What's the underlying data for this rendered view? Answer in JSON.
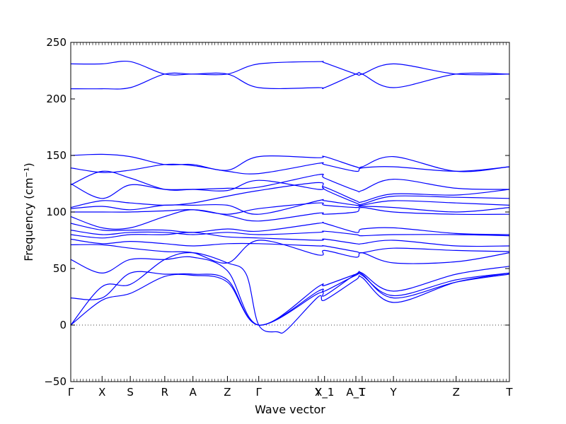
{
  "chart_data": {
    "type": "line",
    "xlabel": "Wave vector",
    "ylabel": "Frequency (cm⁻¹)",
    "ylim": [
      -50,
      250
    ],
    "yticks": [
      -50,
      0,
      50,
      100,
      150,
      200,
      250
    ],
    "xlim": [
      0,
      14
    ],
    "grid": false,
    "high_symmetry_points": [
      {
        "label": "Γ",
        "x": 0.0
      },
      {
        "label": "X",
        "x": 1.0
      },
      {
        "label": "S",
        "x": 1.9
      },
      {
        "label": "R",
        "x": 3.0
      },
      {
        "label": "A",
        "x": 3.9
      },
      {
        "label": "Z",
        "x": 5.0
      },
      {
        "label": "Γ",
        "x": 6.0
      },
      {
        "label": "Y",
        "x": 7.9
      },
      {
        "label": "X_1",
        "x": 8.1
      },
      {
        "label": "A_1",
        "x": 9.1
      },
      {
        "label": "T",
        "x": 9.3
      },
      {
        "label": "Y",
        "x": 10.3
      },
      {
        "label": "Z",
        "x": 12.3
      },
      {
        "label": "T",
        "x": 14.0
      }
    ],
    "zero_line": 0,
    "line_color": "#0000ff",
    "series": [
      {
        "x": [
          0,
          1,
          1.9,
          3,
          3.9,
          5,
          6,
          7.9,
          8.1,
          9.1,
          9.3,
          10.3,
          12.3,
          14
        ],
        "values": [
          209,
          209,
          210,
          222,
          222,
          222,
          210,
          210,
          210,
          222,
          222,
          210,
          222,
          222
        ]
      },
      {
        "x": [
          0,
          1,
          1.9,
          3,
          3.9,
          5,
          6,
          7.9,
          8.1,
          9.1,
          9.3,
          10.3,
          12.3,
          14
        ],
        "values": [
          231,
          231,
          233,
          222,
          222,
          222,
          231,
          233,
          232,
          222,
          222,
          231,
          222,
          222
        ]
      },
      {
        "x": [
          0,
          1,
          1.9,
          3,
          3.9,
          5,
          6,
          7.9,
          8.1,
          9.1,
          9.3,
          10.3,
          12.3,
          14
        ],
        "values": [
          150,
          151,
          149,
          142,
          142,
          137,
          149,
          148,
          149,
          140,
          140,
          149,
          136,
          140
        ]
      },
      {
        "x": [
          0,
          1,
          1.9,
          3,
          3.9,
          5,
          6,
          7.9,
          8.1,
          9.1,
          9.3,
          10.3,
          12.3,
          14
        ],
        "values": [
          139,
          135,
          137,
          142,
          141,
          136,
          134,
          143,
          142,
          136,
          139,
          140,
          136,
          140
        ]
      },
      {
        "x": [
          0,
          1,
          1.9,
          3,
          3.9,
          5,
          6,
          7.9,
          8.1,
          9.1,
          9.3,
          10.3,
          12.3,
          14
        ],
        "values": [
          124,
          136,
          130,
          120,
          120,
          121,
          122,
          133,
          130,
          119,
          119,
          129,
          121,
          120
        ]
      },
      {
        "x": [
          0,
          1,
          1.9,
          3,
          3.9,
          5,
          6,
          7.9,
          8.1,
          9.1,
          9.3,
          10.3,
          12.3,
          14
        ],
        "values": [
          125,
          112,
          124,
          120,
          120,
          119,
          128,
          120,
          122,
          110,
          109,
          116,
          115,
          120
        ]
      },
      {
        "x": [
          0,
          1,
          1.9,
          3,
          3.9,
          5,
          6,
          7.9,
          8.1,
          9.1,
          9.3,
          10.3,
          12.3,
          14
        ],
        "values": [
          104,
          110,
          108,
          106,
          108,
          114,
          119,
          126,
          120,
          108,
          107,
          114,
          113,
          112
        ]
      },
      {
        "x": [
          0,
          1,
          1.9,
          3,
          3.9,
          5,
          6,
          7.9,
          8.1,
          9.1,
          9.3,
          10.3,
          12.3,
          14
        ],
        "values": [
          103,
          105,
          102,
          106,
          106,
          106,
          98,
          110,
          110,
          106,
          106,
          110,
          108,
          106
        ]
      },
      {
        "x": [
          0,
          1,
          1.9,
          3,
          3.9,
          5,
          6,
          7.9,
          8.1,
          9.1,
          9.3,
          10.3,
          12.3,
          14
        ],
        "values": [
          100,
          100,
          100,
          101,
          102,
          98,
          103,
          108,
          106,
          104,
          105,
          104,
          100,
          104
        ]
      },
      {
        "x": [
          0,
          1,
          1.9,
          3,
          3.9,
          5,
          6,
          7.9,
          8.1,
          9.1,
          9.3,
          10.3,
          12.3,
          14
        ],
        "values": [
          96,
          86,
          86,
          96,
          102,
          97,
          92,
          99,
          98,
          100,
          104,
          100,
          98,
          98
        ]
      },
      {
        "x": [
          0,
          1,
          1.9,
          3,
          3.9,
          5,
          6,
          7.9,
          8.1,
          9.1,
          9.3,
          10.3,
          12.3,
          14
        ],
        "values": [
          90,
          84,
          84,
          84,
          82,
          85,
          83,
          90,
          90,
          82,
          85,
          86,
          81,
          80
        ]
      },
      {
        "x": [
          0,
          1,
          1.9,
          3,
          3.9,
          5,
          6,
          7.9,
          8.1,
          9.1,
          9.3,
          10.3,
          12.3,
          14
        ],
        "values": [
          84,
          80,
          82,
          82,
          80,
          82,
          80,
          82,
          83,
          80,
          79,
          80,
          80,
          79
        ]
      },
      {
        "x": [
          0,
          1,
          1.9,
          3,
          3.9,
          5,
          6,
          7.9,
          8.1,
          9.1,
          9.3,
          10.3,
          12.3,
          14
        ],
        "values": [
          80,
          77,
          80,
          80,
          82,
          78,
          77,
          75,
          76,
          72,
          72,
          75,
          70,
          70
        ]
      },
      {
        "x": [
          0,
          1,
          1.9,
          3,
          3.9,
          5,
          6,
          7.9,
          8.1,
          9.1,
          9.3,
          10.3,
          12.3,
          14
        ],
        "values": [
          76,
          72,
          74,
          72,
          70,
          72,
          72,
          70,
          70,
          65,
          64,
          68,
          66,
          65
        ]
      },
      {
        "x": [
          0,
          1,
          1.9,
          3,
          3.9,
          5,
          6,
          7.9,
          8.1,
          9.1,
          9.3,
          10.3,
          12.3,
          14
        ],
        "values": [
          71,
          71,
          68,
          65,
          64,
          55,
          75,
          62,
          66,
          60,
          64,
          55,
          56,
          64
        ]
      },
      {
        "x": [
          0,
          1,
          1.9,
          3,
          3.9,
          5,
          6,
          7.9,
          8.1,
          9.1,
          9.3,
          10.3,
          12.3,
          14
        ],
        "values": [
          58,
          46,
          58,
          58,
          60,
          48,
          0,
          34,
          35,
          45,
          46,
          30,
          45,
          52
        ]
      },
      {
        "x": [
          0,
          1,
          1.9,
          3,
          3.9,
          5,
          6,
          7.9,
          8.1,
          9.1,
          9.3,
          10.3,
          12.3,
          14
        ],
        "values": [
          24,
          24,
          46,
          45,
          45,
          40,
          0,
          30,
          30,
          44,
          44,
          26,
          40,
          46
        ]
      },
      {
        "x": [
          0,
          1,
          1.9,
          3,
          3.9,
          5,
          6,
          7.9,
          8.1,
          9.1,
          9.3,
          10.3,
          12.3,
          14
        ],
        "values": [
          0,
          22,
          28,
          43,
          44,
          38,
          0,
          28,
          26,
          45,
          45,
          24,
          38,
          45
        ]
      },
      {
        "x": [
          0,
          1,
          1.9,
          3,
          3.9,
          5,
          5.6,
          6,
          6.6,
          6.9,
          7.9,
          8.1,
          9.1,
          9.3,
          10.3,
          12.3,
          14
        ],
        "values": [
          0,
          34,
          36,
          58,
          64,
          55,
          45,
          0,
          -6,
          -4,
          25,
          22,
          40,
          42,
          20,
          38,
          46
        ]
      }
    ]
  }
}
